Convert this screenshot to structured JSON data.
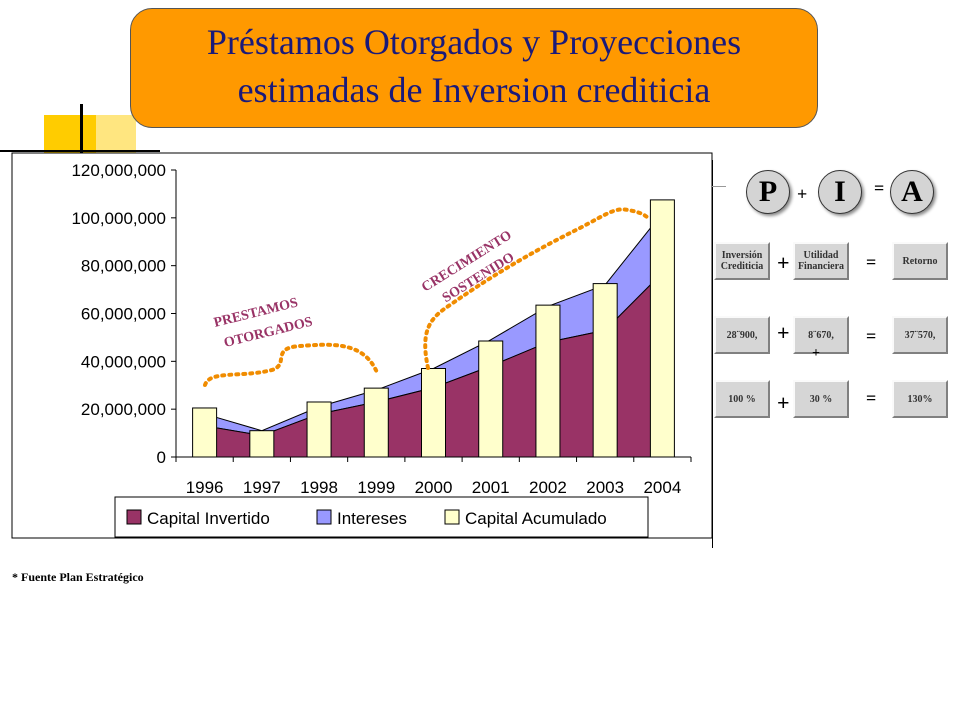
{
  "title": {
    "line1": "Préstamos Otorgados y Proyecciones",
    "line2": "estimadas de Inversion crediticia"
  },
  "chart_data": {
    "type": "area",
    "categories": [
      "1996",
      "1997",
      "1998",
      "1999",
      "2000",
      "2001",
      "2002",
      "2003",
      "2004"
    ],
    "ylim": [
      0,
      120000000
    ],
    "yticks": [
      "0",
      "20,000,000",
      "40,000,000",
      "60,000,000",
      "80,000,000",
      "100,000,000",
      "120,000,000"
    ],
    "series": [
      {
        "name": "Capital Invertido",
        "type": "area",
        "color": "#993366",
        "values": [
          13000000,
          9000000,
          18000000,
          23000000,
          29000000,
          38000000,
          48000000,
          53000000,
          77000000
        ]
      },
      {
        "name": "Intereses",
        "type": "area",
        "color": "#9999ff",
        "values": [
          5000000,
          2000000,
          3000000,
          5000000,
          8000000,
          11000000,
          15000000,
          19000000,
          25000000
        ]
      },
      {
        "name": "Capital Acumulado",
        "type": "bar",
        "color": "#ffffcc",
        "values": [
          20500000,
          11000000,
          23000000,
          28800000,
          37000000,
          48500000,
          63500000,
          72500000,
          107500000
        ]
      }
    ],
    "annotations": [
      {
        "text_line1": "PRESTAMOS",
        "text_line2": "OTORGADOS"
      },
      {
        "text_line1": "CRECIMIENTO",
        "text_line2": "SOSTENIDO"
      }
    ],
    "legend": "bottom",
    "grid": false
  },
  "formula": {
    "p": "P",
    "i": "I",
    "a": "A",
    "plus": "+",
    "equals": "=",
    "row1": {
      "left": "Inversión Crediticia",
      "mid": "Utilidad Financiera",
      "right": "Retorno"
    },
    "row2": {
      "left": "28¨900,",
      "mid": "8¨670,",
      "right": "37¨570,",
      "extra_plus": "+"
    },
    "row3": {
      "left": "100 %",
      "mid": "30 %",
      "right": "130%"
    }
  },
  "footnote": "* Fuente Plan Estratégico"
}
